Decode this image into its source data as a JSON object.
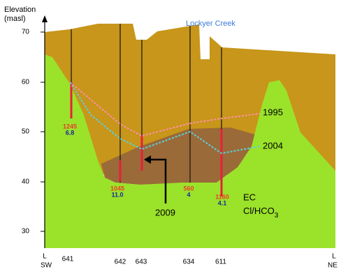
{
  "y_axis": {
    "label_line1": "Elevation",
    "label_line2": "(masl)",
    "ticks": [
      "70",
      "60",
      "50",
      "40",
      "30"
    ]
  },
  "river_label": "Lockyer Creek",
  "ends": {
    "left": "L",
    "left_sub": "SW",
    "right": "L",
    "right_sub": "NE"
  },
  "bores": [
    {
      "id": "641",
      "ec": "1245",
      "ratio": "6.8"
    },
    {
      "id": "642",
      "ec": "1045",
      "ratio": "11.0"
    },
    {
      "id": "643"
    },
    {
      "id": "634",
      "ec": "560",
      "ratio": "4"
    },
    {
      "id": "611",
      "ec": "1160",
      "ratio": "4.1"
    }
  ],
  "series_labels": [
    "1995",
    "2004",
    "2009"
  ],
  "legend": {
    "ec": "EC",
    "ratio": "Cl/HCO",
    "ratio_sub": "3"
  }
}
